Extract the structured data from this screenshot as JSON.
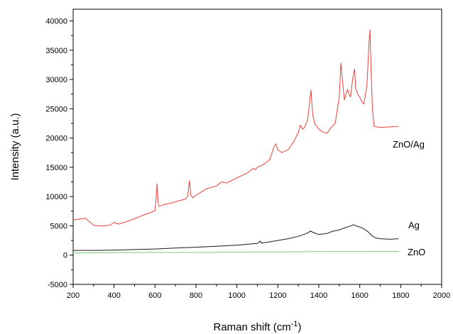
{
  "chart_data": {
    "type": "line",
    "title": "",
    "xlabel": "Raman shift (cm",
    "xlabel_sup": "-1",
    "xlabel_close": ")",
    "ylabel": "Intensity (a.u.)",
    "xlim": [
      200,
      2000
    ],
    "ylim": [
      -5000,
      42000
    ],
    "xticks": [
      200,
      400,
      600,
      800,
      1000,
      1200,
      1400,
      1600,
      1800,
      2000
    ],
    "yticks": [
      -5000,
      0,
      5000,
      10000,
      15000,
      20000,
      25000,
      30000,
      35000,
      40000
    ],
    "grid": false,
    "legend": "direct labels next to each curve",
    "series": [
      {
        "name": "ZnO/Ag",
        "color": "#e8403a",
        "x": [
          200,
          220,
          240,
          260,
          280,
          300,
          340,
          380,
          400,
          420,
          460,
          500,
          540,
          580,
          600,
          605,
          610,
          615,
          620,
          640,
          680,
          720,
          750,
          760,
          768,
          775,
          785,
          800,
          850,
          900,
          925,
          950,
          1000,
          1050,
          1080,
          1090,
          1100,
          1120,
          1140,
          1160,
          1180,
          1190,
          1200,
          1220,
          1250,
          1280,
          1300,
          1310,
          1320,
          1330,
          1345,
          1355,
          1362,
          1370,
          1380,
          1400,
          1420,
          1440,
          1460,
          1480,
          1500,
          1508,
          1515,
          1525,
          1540,
          1548,
          1555,
          1565,
          1575,
          1580,
          1590,
          1600,
          1610,
          1620,
          1635,
          1645,
          1650,
          1655,
          1662,
          1670,
          1700,
          1750,
          1790
        ],
        "y": [
          6000,
          6100,
          6200,
          6300,
          5700,
          5100,
          4950,
          5100,
          5600,
          5300,
          5700,
          6200,
          6800,
          7300,
          7600,
          9500,
          12200,
          9000,
          8300,
          8600,
          8900,
          9300,
          9600,
          10200,
          12700,
          10200,
          9800,
          10200,
          11300,
          11800,
          12500,
          12300,
          13200,
          14000,
          14800,
          14600,
          15000,
          15300,
          15700,
          16300,
          18400,
          19000,
          18000,
          17500,
          18000,
          19500,
          21000,
          22200,
          21500,
          21800,
          23000,
          26000,
          28200,
          24000,
          22500,
          21500,
          21000,
          20800,
          21800,
          22500,
          27000,
          32800,
          30000,
          26500,
          28300,
          27500,
          27000,
          30000,
          31800,
          28500,
          27500,
          27000,
          26200,
          25800,
          29000,
          36000,
          38500,
          32000,
          25000,
          22000,
          21800,
          21900,
          22000
        ]
      },
      {
        "name": "Ag",
        "color": "#1a1a1a",
        "x": [
          200,
          300,
          400,
          500,
          600,
          700,
          800,
          900,
          1000,
          1050,
          1100,
          1115,
          1120,
          1125,
          1150,
          1200,
          1250,
          1300,
          1340,
          1360,
          1370,
          1400,
          1440,
          1470,
          1500,
          1530,
          1550,
          1570,
          1580,
          1600,
          1620,
          1640,
          1660,
          1680,
          1700,
          1750,
          1790
        ],
        "y": [
          800,
          800,
          850,
          950,
          1050,
          1200,
          1350,
          1500,
          1700,
          1850,
          2000,
          2400,
          2000,
          2100,
          2200,
          2500,
          2800,
          3200,
          3700,
          4100,
          3900,
          3500,
          3700,
          4100,
          4300,
          4700,
          4900,
          5200,
          5000,
          4800,
          4500,
          4000,
          3300,
          2900,
          2800,
          2700,
          2800
        ]
      },
      {
        "name": "ZnO",
        "color": "#7ccd7c",
        "x": [
          200,
          400,
          600,
          800,
          1000,
          1200,
          1400,
          1600,
          1790
        ],
        "y": [
          350,
          400,
          450,
          450,
          500,
          550,
          600,
          600,
          650
        ]
      }
    ]
  }
}
